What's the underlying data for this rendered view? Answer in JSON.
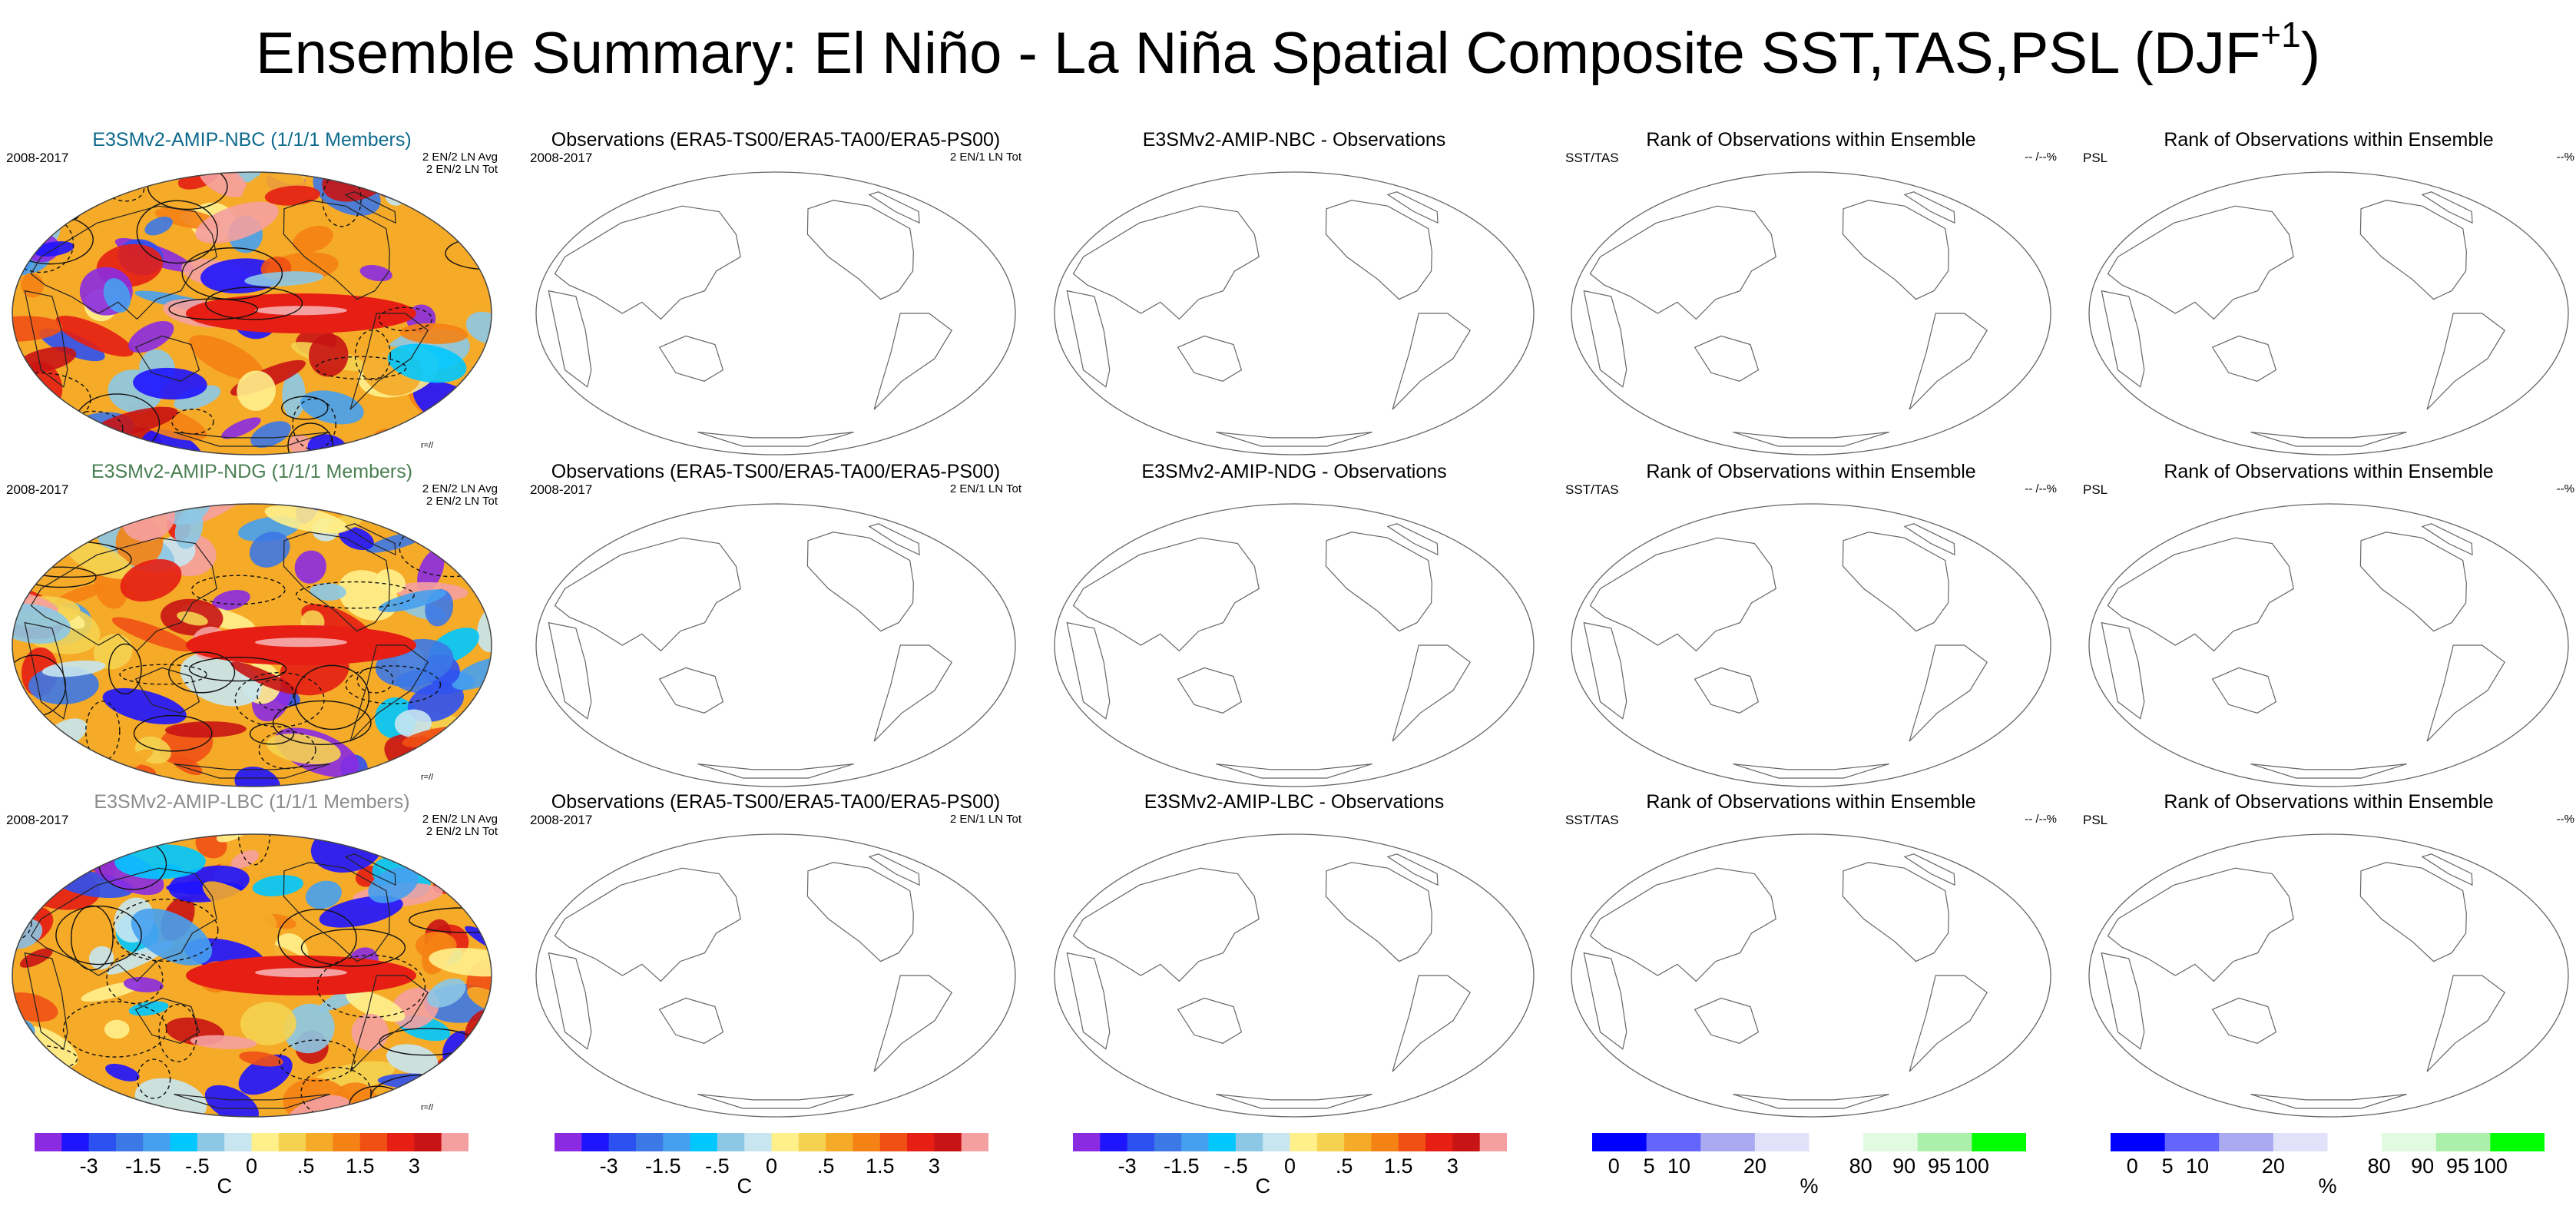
{
  "title": {
    "main": "Ensemble Summary: El Niño - La Niña Spatial Composite SST,TAS,PSL (DJF",
    "sup": "+1",
    "close": ")"
  },
  "rows": [
    {
      "model_title": "E3SMv2-AMIP-NBC (1/1/1 Members)",
      "model_color": "#0e6a8c",
      "period": "2008-2017",
      "model_avg": "2 EN/2 LN Avg",
      "model_tot": "2 EN/2 LN Tot",
      "model_tag": "r=//",
      "obs_title": "Observations (ERA5-TS00/ERA5-TA00/ERA5-PS00)",
      "obs_period": "2008-2017",
      "obs_count": "2 EN/1 LN Tot",
      "diff_title": "E3SMv2-AMIP-NBC - Observations",
      "rank_title": "Rank of Observations within Ensemble",
      "rank_left_1": "SST/TAS",
      "rank_right_1": "-- /--%",
      "rank_left_2": "PSL",
      "rank_right_2": "--%"
    },
    {
      "model_title": "E3SMv2-AMIP-NDG (1/1/1 Members)",
      "model_color": "#4a7f52",
      "period": "2008-2017",
      "model_avg": "2 EN/2 LN Avg",
      "model_tot": "2 EN/2 LN Tot",
      "model_tag": "r=//",
      "obs_title": "Observations (ERA5-TS00/ERA5-TA00/ERA5-PS00)",
      "obs_period": "2008-2017",
      "obs_count": "2 EN/1 LN Tot",
      "diff_title": "E3SMv2-AMIP-NDG - Observations",
      "rank_title": "Rank of Observations within Ensemble",
      "rank_left_1": "SST/TAS",
      "rank_right_1": "-- /--%",
      "rank_left_2": "PSL",
      "rank_right_2": "--%"
    },
    {
      "model_title": "E3SMv2-AMIP-LBC (1/1/1 Members)",
      "model_color": "#8c8c8c",
      "period": "2008-2017",
      "model_avg": "2 EN/2 LN Avg",
      "model_tot": "2 EN/2 LN Tot",
      "model_tag": "r=//",
      "obs_title": "Observations (ERA5-TS00/ERA5-TA00/ERA5-PS00)",
      "obs_period": "2008-2017",
      "obs_count": "2 EN/1 LN Tot",
      "diff_title": "E3SMv2-AMIP-LBC - Observations",
      "rank_title": "Rank of Observations within Ensemble",
      "rank_left_1": "SST/TAS",
      "rank_right_1": "-- /--%",
      "rank_left_2": "PSL",
      "rank_right_2": "--%"
    }
  ],
  "chart_data": {
    "type": "heatmap",
    "colorbars": [
      {
        "name": "temperature",
        "unit": "C",
        "labels": [
          "-3",
          "-1.5",
          "-.5",
          "0",
          ".5",
          "1.5",
          "3"
        ],
        "colors": [
          "#8a2be2",
          "#1e14ff",
          "#2d50f0",
          "#3c78e6",
          "#46a0f0",
          "#00c8ff",
          "#8cc8e6",
          "#c8e6f0",
          "#fff08c",
          "#f5d250",
          "#f5aa28",
          "#f58214",
          "#f05014",
          "#e61e14",
          "#c81414",
          "#f5a0a0"
        ]
      },
      {
        "name": "rank",
        "unit": "%",
        "labels": [
          "0",
          "5",
          "10",
          "20",
          "80",
          "90",
          "95",
          "100"
        ],
        "colors": [
          "#0000ff",
          "#6464ff",
          "#aaaaf0",
          "#e1e1fa",
          "#ffffff",
          "#e1fae1",
          "#aaf0aa",
          "#00ff00"
        ]
      }
    ]
  }
}
